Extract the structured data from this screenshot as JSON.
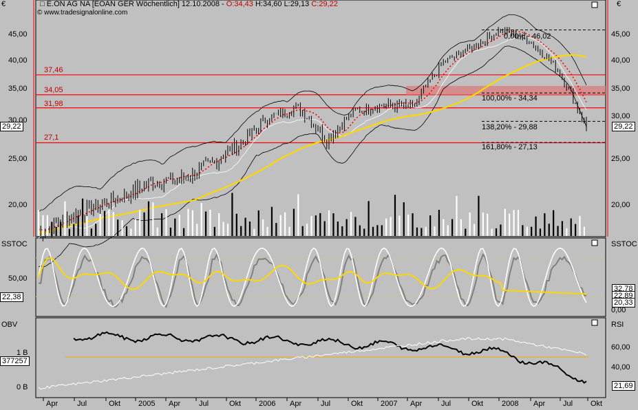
{
  "header": {
    "symbol_label": "E.ON AG NA [EOAN GER  Wöchentlich] 12.10.2008",
    "open": "O:34,43",
    "high": "H:34,60",
    "low": "L:29,13",
    "close": "C:29,22",
    "source": "www.tradesignalonline.com"
  },
  "panes": {
    "price": {
      "currency": "€",
      "left_ticks": [
        "45,00",
        "40,00",
        "35,00",
        "30,00",
        "25,00",
        "20,00"
      ],
      "right_ticks": [
        "45,00",
        "40,00",
        "35,00",
        "30,00",
        "25,00",
        "20,00"
      ],
      "last_value": "29,22",
      "levels": [
        {
          "label": "37,46",
          "value": 37.46
        },
        {
          "label": "34,05",
          "value": 34.05
        },
        {
          "label": "31,98",
          "value": 31.98
        },
        {
          "label": "27,1",
          "value": 27.1
        }
      ],
      "fib_labels": [
        "0,00% - 46,02",
        "100,00% - 34,34",
        "138,20% - 29,88",
        "161,80% - 27,13"
      ]
    },
    "sstoc": {
      "title": "SSTOC",
      "left_ticks": [
        "50,00"
      ],
      "left_last": "22,38",
      "right_ticks": [
        "0,00"
      ],
      "right_values": [
        "32,78",
        "22,89",
        "20,33"
      ]
    },
    "obv": {
      "title": "OBV",
      "left_ticks": [
        "1 B",
        "0 B"
      ],
      "left_last": "377257",
      "right_title": "RSI",
      "right_ticks": [
        "60,00",
        "40,00"
      ],
      "right_last": "21,69"
    }
  },
  "x_axis": [
    "Apr",
    "Jul",
    "Okt",
    "2005",
    "Apr",
    "Jul",
    "Okt",
    "2006",
    "Apr",
    "Jul",
    "Okt",
    "2007",
    "Apr",
    "Jul",
    "Okt",
    "2008",
    "Apr",
    "Jul",
    "Okt"
  ],
  "colors": {
    "level_line": "#ff0000",
    "sma": "#ffd700",
    "bollinger": "#000000",
    "sar": "#ff0000",
    "stoch_fast": "#ffffff",
    "stoch_slow": "#808080",
    "stoch_avg": "#ffd700",
    "obv": "#000000",
    "rsi": "#ffffff"
  },
  "chart_data": {
    "type": "line",
    "title": "E.ON AG NA [EOAN GER  Wöchentlich] 12.10.2008",
    "x": [
      "2004-01",
      "2004-04",
      "2004-07",
      "2004-10",
      "2005-01",
      "2005-04",
      "2005-07",
      "2005-10",
      "2006-01",
      "2006-04",
      "2006-07",
      "2006-10",
      "2007-01",
      "2007-04",
      "2007-07",
      "2007-10",
      "2008-01",
      "2008-04",
      "2008-07",
      "2008-10"
    ],
    "series": [
      {
        "name": "Close",
        "values": [
          17.0,
          18.6,
          19.8,
          21.0,
          22.6,
          22.8,
          24.5,
          27.0,
          30.5,
          32.0,
          27.5,
          31.5,
          32.5,
          32.0,
          39.5,
          42.5,
          46.0,
          44.0,
          38.5,
          29.2
        ]
      }
    ],
    "ylim": [
      16.5,
      47.0
    ],
    "levels": [
      37.46,
      34.05,
      31.98,
      27.1
    ]
  }
}
